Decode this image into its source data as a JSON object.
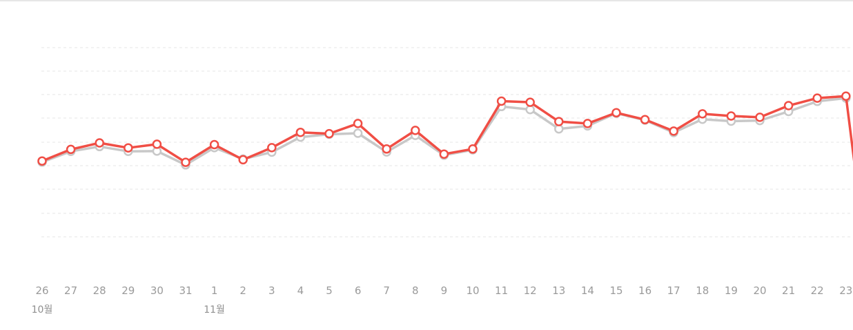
{
  "chart_data": {
    "type": "line",
    "x": [
      "26",
      "27",
      "28",
      "29",
      "30",
      "31",
      "1",
      "2",
      "3",
      "4",
      "5",
      "6",
      "7",
      "8",
      "9",
      "10",
      "11",
      "12",
      "13",
      "14",
      "15",
      "16",
      "17",
      "18",
      "19",
      "20",
      "21",
      "22",
      "23"
    ],
    "month_labels": [
      {
        "label": "10월",
        "index": 0
      },
      {
        "label": "11월",
        "index": 6
      }
    ],
    "y_range": [
      0,
      100
    ],
    "grid": true,
    "series": [
      {
        "color": "#f04e45",
        "marker": "circle-hollow",
        "values": [
          46.4,
          51.8,
          54.8,
          52.5,
          54.2,
          45.8,
          54.0,
          47.0,
          52.6,
          59.7,
          59.1,
          63.8,
          52.0,
          60.6,
          49.6,
          52.0,
          74.2,
          73.7,
          64.7,
          63.8,
          68.8,
          65.6,
          60.3,
          68.3,
          67.3,
          66.7,
          72.1,
          75.6,
          76.5
        ],
        "tail_to": 36.0
      },
      {
        "color": "#c8c8c8",
        "marker": "circle-hollow",
        "values": [
          45.9,
          50.9,
          53.1,
          50.9,
          51.0,
          44.6,
          52.6,
          47.3,
          50.5,
          57.5,
          58.8,
          59.3,
          50.6,
          58.3,
          49.1,
          51.6,
          71.7,
          70.3,
          61.3,
          62.7,
          68.6,
          65.4,
          59.6,
          65.8,
          64.9,
          65.2,
          69.4,
          74.1,
          75.6
        ]
      }
    ]
  }
}
